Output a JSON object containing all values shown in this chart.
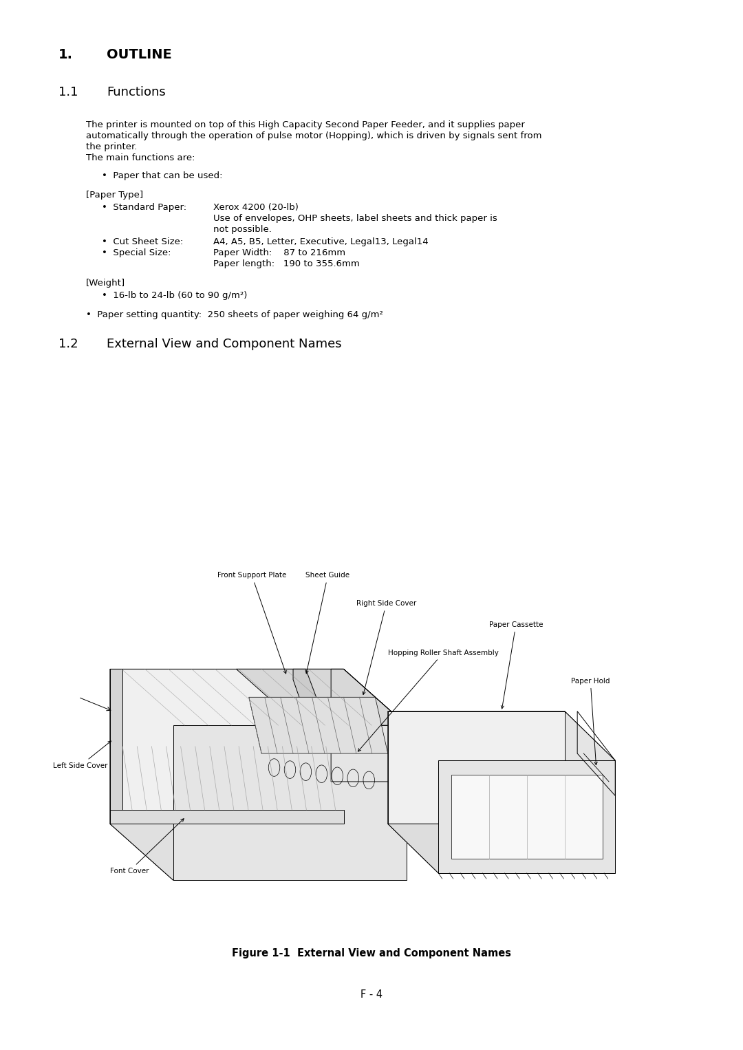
{
  "bg_color": "#ffffff",
  "page_width": 10.8,
  "page_height": 15.26,
  "title1": "1.",
  "title1_label": "OUTLINE",
  "section11_num": "1.1",
  "section11_title": "Functions",
  "body_para1_l1": "The printer is mounted on top of this High Capacity Second Paper Feeder, and it supplies paper",
  "body_para1_l2": "automatically through the operation of pulse motor (Hopping), which is driven by signals sent from",
  "body_para1_l3": "the printer.",
  "body_para1_l4": "The main functions are:",
  "bullet_paper": "•  Paper that can be used:",
  "paper_type_hdr": "[Paper Type]",
  "std_bullet": "•  Standard Paper:",
  "std_val1": "Xerox 4200 (20-lb)",
  "std_val2": "Use of envelopes, OHP sheets, label sheets and thick paper is",
  "std_val3": "not possible.",
  "cut_bullet": "•  Cut Sheet Size:",
  "cut_val": "A4, A5, B5, Letter, Executive, Legal13, Legal14",
  "spl_bullet": "•  Special Size:",
  "spl_val1": "Paper Width:    87 to 216mm",
  "spl_val2": "Paper length:   190 to 355.6mm",
  "weight_hdr": "[Weight]",
  "weight_bullet": "•  16-lb to 24-lb (60 to 90 g/m²)",
  "qty_bullet": "•  Paper setting quantity:  250 sheets of paper weighing 64 g/m²",
  "section12_num": "1.2",
  "section12_title": "External View and Component Names",
  "figure_caption": "Figure 1-1  External View and Component Names",
  "page_number": "F - 4"
}
